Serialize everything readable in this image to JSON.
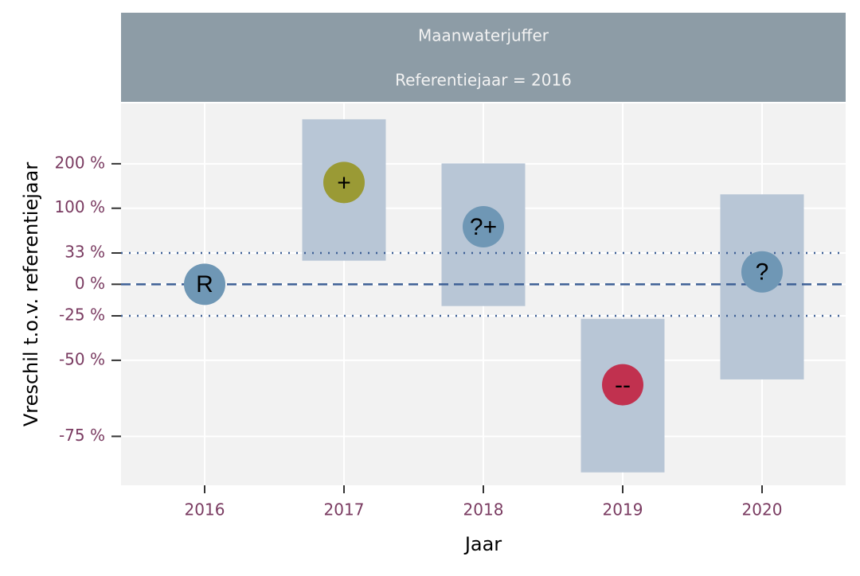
{
  "chart_data": {
    "type": "interval",
    "title": "Maanwaterjuffer",
    "subtitle": "Referentiejaar = 2016",
    "x_label": "Jaar",
    "y_label": "Vreschil t.o.v. referentiejaar",
    "categories": [
      "2016",
      "2017",
      "2018",
      "2019",
      "2020"
    ],
    "values": [
      0,
      153,
      69,
      -60,
      12
    ],
    "lower": [
      null,
      24,
      -18,
      -82,
      -58
    ],
    "upper": [
      null,
      350,
      201,
      -27,
      127
    ],
    "point_labels": [
      "R",
      "+",
      "?+",
      "--",
      "?"
    ],
    "point_colors": [
      "#6f97b5",
      "#9a9a35",
      "#6f97b5",
      "#c1314f",
      "#6f97b5"
    ],
    "interval_color": "#b8c6d6",
    "y_scale": "log-ratio",
    "ylim": [
      -84,
      420
    ],
    "yticks": [
      {
        "value": -75,
        "label": "-75 %"
      },
      {
        "value": -50,
        "label": "-50 %"
      },
      {
        "value": -25,
        "label": "-25 %"
      },
      {
        "value": 0,
        "label": "0 %"
      },
      {
        "value": 33,
        "label": "33 %"
      },
      {
        "value": 100,
        "label": "100 %"
      },
      {
        "value": 200,
        "label": "200 %"
      }
    ],
    "reference_lines": [
      {
        "value": 0,
        "style": "dashed"
      },
      {
        "value": 33,
        "style": "dotted"
      },
      {
        "value": -25,
        "style": "dotted"
      }
    ],
    "grid": true
  }
}
